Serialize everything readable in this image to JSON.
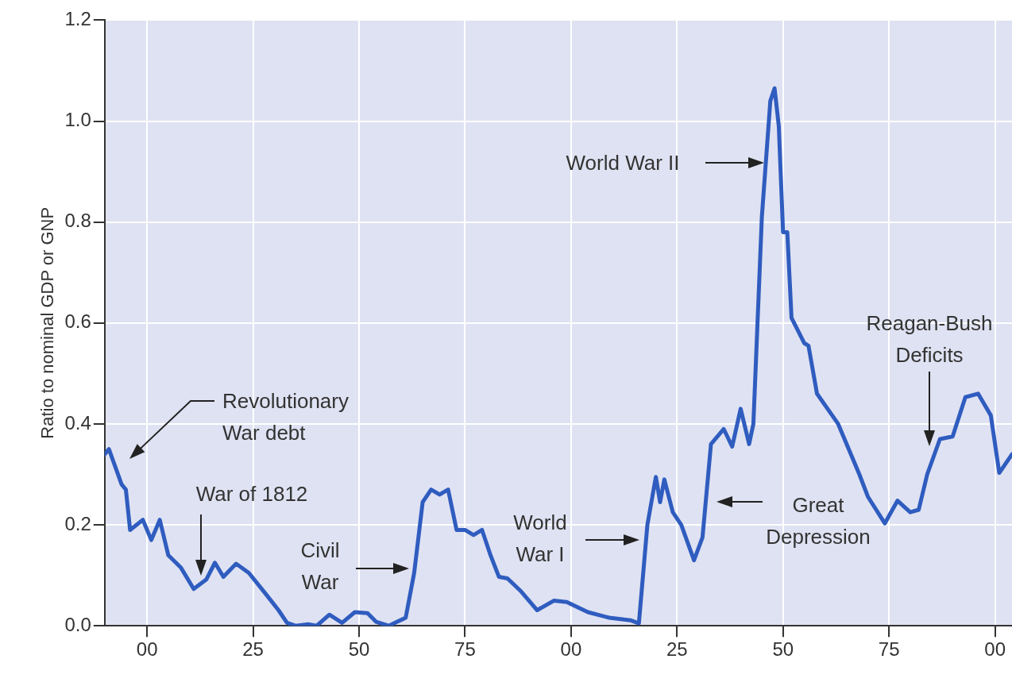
{
  "chart_data": {
    "type": "line",
    "ylabel": "Ratio to nominal GDP or GNP",
    "x": [
      1790,
      1791,
      1794,
      1795,
      1796,
      1799,
      1801,
      1803,
      1805,
      1808,
      1811,
      1814,
      1816,
      1818,
      1821,
      1824,
      1828,
      1831,
      1833,
      1835,
      1838,
      1840,
      1843,
      1846,
      1849,
      1852,
      1854,
      1857,
      1859,
      1861,
      1863,
      1865,
      1867,
      1869,
      1871,
      1873,
      1875,
      1877,
      1879,
      1881,
      1883,
      1885,
      1888,
      1892,
      1896,
      1899,
      1904,
      1909,
      1914,
      1916,
      1918,
      1920,
      1921,
      1922,
      1924,
      1926,
      1929,
      1931,
      1933,
      1936,
      1938,
      1940,
      1942,
      1943,
      1945,
      1947,
      1948,
      1949,
      1950,
      1951,
      1952,
      1955,
      1956,
      1958,
      1963,
      1968,
      1970,
      1974,
      1977,
      1980,
      1982,
      1984,
      1987,
      1990,
      1993,
      1996,
      1999,
      2001,
      2004
    ],
    "series": [
      {
        "color": "#2f5cbf",
        "values": [
          0.34,
          0.35,
          0.28,
          0.27,
          0.19,
          0.21,
          0.17,
          0.21,
          0.14,
          0.115,
          0.073,
          0.092,
          0.125,
          0.097,
          0.123,
          0.105,
          0.063,
          0.031,
          0.006,
          0.0,
          0.003,
          0.0,
          0.022,
          0.006,
          0.027,
          0.025,
          0.008,
          0.0,
          0.008,
          0.016,
          0.105,
          0.245,
          0.27,
          0.26,
          0.27,
          0.19,
          0.19,
          0.18,
          0.19,
          0.14,
          0.097,
          0.094,
          0.07,
          0.031,
          0.05,
          0.047,
          0.027,
          0.016,
          0.011,
          0.005,
          0.2,
          0.295,
          0.245,
          0.29,
          0.225,
          0.2,
          0.13,
          0.175,
          0.36,
          0.39,
          0.355,
          0.43,
          0.36,
          0.4,
          0.81,
          1.04,
          1.065,
          0.99,
          0.78,
          0.78,
          0.61,
          0.56,
          0.555,
          0.46,
          0.4,
          0.3,
          0.256,
          0.203,
          0.248,
          0.225,
          0.23,
          0.3,
          0.37,
          0.375,
          0.453,
          0.46,
          0.417,
          0.303,
          0.34
        ]
      }
    ],
    "xlim": [
      1790,
      2004
    ],
    "xticks": [
      {
        "value": 1800,
        "label": "00"
      },
      {
        "value": 1825,
        "label": "25"
      },
      {
        "value": 1850,
        "label": "50"
      },
      {
        "value": 1875,
        "label": "75"
      },
      {
        "value": 1900,
        "label": "00"
      },
      {
        "value": 1925,
        "label": "25"
      },
      {
        "value": 1950,
        "label": "50"
      },
      {
        "value": 1975,
        "label": "75"
      },
      {
        "value": 2000,
        "label": "00"
      }
    ],
    "ylim": [
      0,
      1.2
    ],
    "yticks": [
      {
        "value": 0,
        "label": "0.0"
      },
      0.2,
      0.4,
      0.6,
      0.8,
      {
        "value": 1,
        "label": "1.0"
      },
      1.2
    ],
    "grid": true,
    "annotations": [
      "Revolutionary\nWar debt",
      "War of 1812",
      "Civil\nWar",
      "World\nWar I",
      "World War II",
      "Great\nDepression",
      "Reagan-Bush\nDeficits"
    ]
  }
}
